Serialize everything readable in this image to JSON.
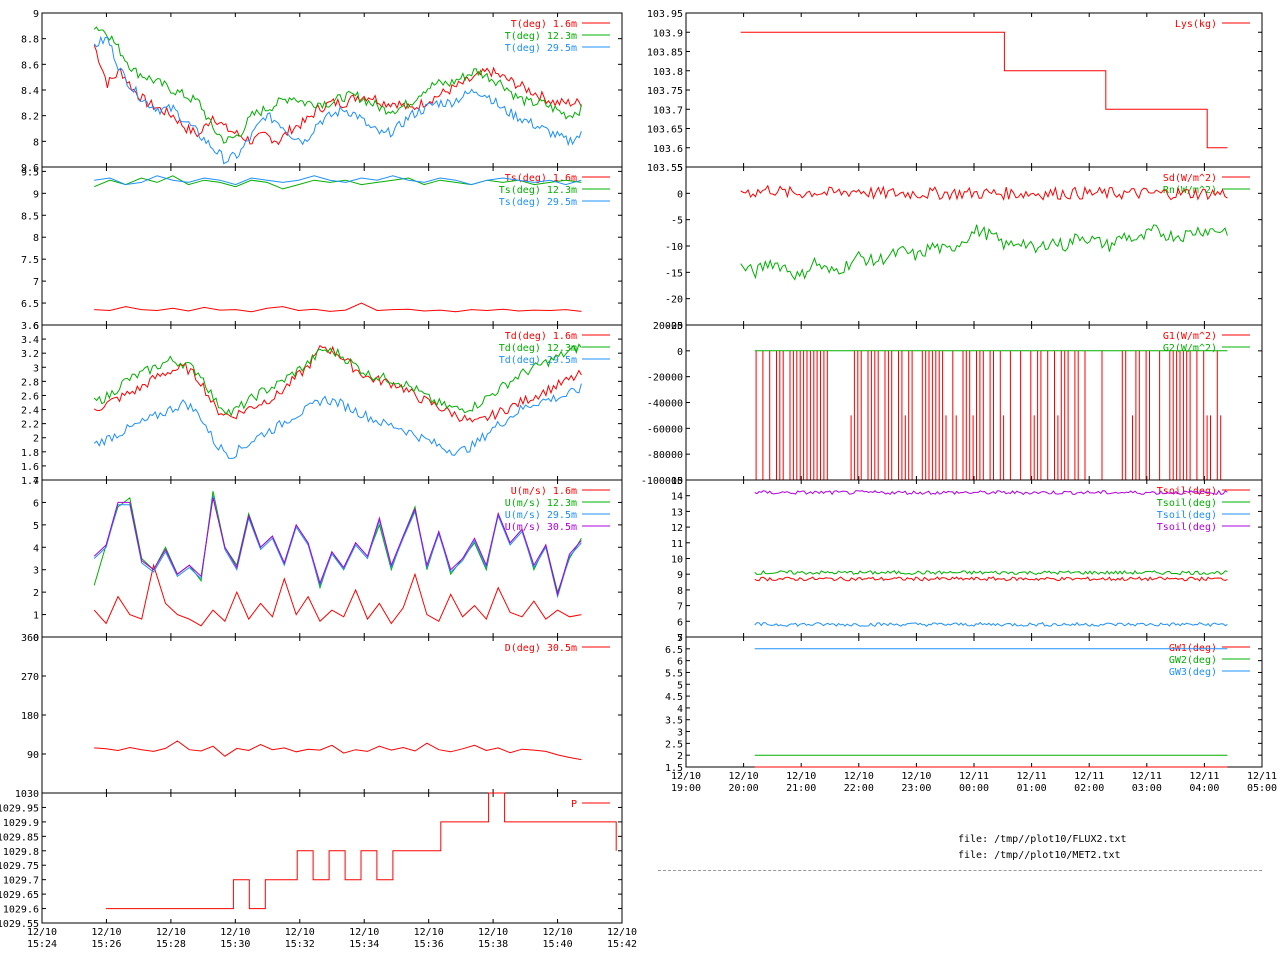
{
  "chart_data": [
    {
      "id": "met_t",
      "type": "line",
      "ylim": [
        7.8,
        9.0
      ],
      "yticks": [
        "9",
        "8.8",
        "8.6",
        "8.4",
        "8.2",
        "8"
      ],
      "series": [
        {
          "name": "T(deg)  1.6m",
          "color": "#ff0000",
          "values": [
            8.75,
            8.45,
            8.55,
            8.4,
            8.3,
            8.25,
            8.2,
            8.1,
            8.05,
            8.2,
            8.1,
            8.05,
            8.0,
            8.05,
            8.0,
            8.1,
            8.15,
            8.25,
            8.3,
            8.3,
            8.35,
            8.35,
            8.3,
            8.3,
            8.25,
            8.3,
            8.35,
            8.4,
            8.45,
            8.5,
            8.55,
            8.5,
            8.45,
            8.4,
            8.35,
            8.3,
            8.3,
            8.3
          ]
        },
        {
          "name": "T(deg) 12.3m",
          "color": "#00b000",
          "values": [
            8.9,
            8.85,
            8.7,
            8.55,
            8.5,
            8.45,
            8.4,
            8.35,
            8.3,
            8.1,
            8.0,
            8.05,
            8.2,
            8.25,
            8.3,
            8.35,
            8.3,
            8.3,
            8.3,
            8.35,
            8.35,
            8.3,
            8.25,
            8.25,
            8.3,
            8.4,
            8.45,
            8.45,
            8.5,
            8.55,
            8.5,
            8.45,
            8.35,
            8.3,
            8.3,
            8.25,
            8.2,
            8.25
          ]
        },
        {
          "name": "T(deg) 29.5m",
          "color": "#1e90ff",
          "values": [
            8.75,
            8.8,
            8.55,
            8.4,
            8.3,
            8.25,
            8.25,
            8.15,
            8.05,
            7.95,
            7.85,
            7.9,
            8.05,
            8.2,
            8.15,
            8.05,
            8.0,
            8.15,
            8.2,
            8.25,
            8.2,
            8.1,
            8.05,
            8.1,
            8.2,
            8.25,
            8.3,
            8.3,
            8.35,
            8.4,
            8.35,
            8.25,
            8.2,
            8.15,
            8.1,
            8.05,
            8.0,
            8.05
          ]
        }
      ]
    },
    {
      "id": "met_ts",
      "type": "line",
      "ylim": [
        6.0,
        9.6
      ],
      "yticks": [
        "9.6",
        "9.5",
        "9",
        "8.5",
        "8",
        "7.5",
        "7",
        "6.5",
        "6"
      ],
      "series": [
        {
          "name": "Ts(deg)  1.6m",
          "color": "#ff0000",
          "values": [
            6.35,
            6.33,
            6.42,
            6.35,
            6.33,
            6.38,
            6.32,
            6.4,
            6.34,
            6.35,
            6.3,
            6.38,
            6.42,
            6.33,
            6.36,
            6.31,
            6.34,
            6.5,
            6.33,
            6.35,
            6.36,
            6.32,
            6.34,
            6.3,
            6.35,
            6.33,
            6.36,
            6.32,
            6.34,
            6.33,
            6.35,
            6.31
          ]
        },
        {
          "name": "Ts(deg) 12.3m",
          "color": "#00b000",
          "values": [
            9.15,
            9.3,
            9.2,
            9.35,
            9.25,
            9.4,
            9.2,
            9.3,
            9.25,
            9.15,
            9.3,
            9.25,
            9.1,
            9.2,
            9.3,
            9.25,
            9.3,
            9.2,
            9.25,
            9.3,
            9.35,
            9.2,
            9.3,
            9.25,
            9.2,
            9.3,
            9.25,
            9.3,
            9.2,
            9.25,
            9.3,
            9.25
          ]
        },
        {
          "name": "Ts(deg) 29.5m",
          "color": "#1e90ff",
          "values": [
            9.3,
            9.35,
            9.2,
            9.25,
            9.4,
            9.3,
            9.25,
            9.35,
            9.3,
            9.2,
            9.35,
            9.3,
            9.25,
            9.3,
            9.4,
            9.3,
            9.25,
            9.35,
            9.3,
            9.4,
            9.3,
            9.25,
            9.35,
            9.3,
            9.2,
            9.3,
            9.35,
            9.3,
            9.25,
            9.3,
            9.2,
            9.3
          ]
        }
      ]
    },
    {
      "id": "met_td",
      "type": "line",
      "ylim": [
        1.4,
        3.6
      ],
      "yticks": [
        "3.6",
        "3.4",
        "3.2",
        "3",
        "2.8",
        "2.6",
        "2.4",
        "2.2",
        "2",
        "1.8",
        "1.6",
        "1.4"
      ],
      "series": [
        {
          "name": "Td(deg)  1.6m",
          "color": "#ff0000",
          "values": [
            2.4,
            2.5,
            2.6,
            2.7,
            2.85,
            2.95,
            3.0,
            2.8,
            2.4,
            2.3,
            2.4,
            2.5,
            2.6,
            2.8,
            3.0,
            3.3,
            3.2,
            3.0,
            2.85,
            2.8,
            2.75,
            2.6,
            2.5,
            2.4,
            2.3,
            2.2,
            2.3,
            2.4,
            2.5,
            2.6,
            2.7,
            2.8,
            2.9
          ]
        },
        {
          "name": "Td(deg) 12.3m",
          "color": "#00b000",
          "values": [
            2.5,
            2.6,
            2.8,
            2.9,
            3.0,
            3.1,
            3.05,
            2.9,
            2.5,
            2.35,
            2.5,
            2.65,
            2.75,
            2.9,
            3.05,
            3.25,
            3.2,
            3.05,
            2.9,
            2.85,
            2.8,
            2.7,
            2.55,
            2.45,
            2.4,
            2.45,
            2.6,
            2.75,
            2.9,
            3.0,
            3.1,
            3.2,
            3.3
          ]
        },
        {
          "name": "Td(deg) 29.5m",
          "color": "#1e90ff",
          "values": [
            1.9,
            2.0,
            2.1,
            2.2,
            2.3,
            2.4,
            2.5,
            2.3,
            1.9,
            1.75,
            1.9,
            2.05,
            2.15,
            2.3,
            2.4,
            2.55,
            2.5,
            2.4,
            2.3,
            2.2,
            2.15,
            2.05,
            1.95,
            1.85,
            1.8,
            1.9,
            2.1,
            2.25,
            2.4,
            2.5,
            2.55,
            2.6,
            2.7
          ]
        }
      ]
    },
    {
      "id": "met_u",
      "type": "line",
      "ylim": [
        0,
        7
      ],
      "yticks": [
        "7",
        "6",
        "5",
        "4",
        "3",
        "2",
        "1",
        "0"
      ],
      "series": [
        {
          "name": "U(m/s)  1.6m",
          "color": "#ff0000",
          "values": [
            1.2,
            0.6,
            1.8,
            1.0,
            0.8,
            3.2,
            1.5,
            1.0,
            0.8,
            0.5,
            1.2,
            0.7,
            2.0,
            0.8,
            1.5,
            0.9,
            2.6,
            1.0,
            1.8,
            0.7,
            1.2,
            0.9,
            2.1,
            0.8,
            1.5,
            0.6,
            1.3,
            2.8,
            1.0,
            0.7,
            1.9,
            0.9,
            1.4,
            0.8,
            2.2,
            1.1,
            0.9,
            1.6,
            0.8,
            1.2,
            0.9,
            1.0
          ]
        },
        {
          "name": "U(m/s) 12.3m",
          "color": "#00b000",
          "values": [
            2.3,
            4.1,
            5.8,
            6.2,
            3.5,
            3.0,
            4.0,
            2.8,
            3.2,
            2.5,
            6.5,
            4.0,
            3.2,
            5.5,
            4.0,
            4.5,
            3.3,
            5.0,
            4.2,
            2.2,
            3.8,
            3.0,
            4.2,
            3.6,
            5.0,
            3.0,
            4.5,
            5.8,
            3.0,
            4.7,
            2.8,
            3.5,
            4.2,
            3.0,
            5.5,
            4.2,
            4.8,
            3.0,
            4.1,
            2.0,
            3.5,
            4.4
          ]
        },
        {
          "name": "U(m/s) 29.5m",
          "color": "#1e90ff",
          "values": [
            3.5,
            4.0,
            5.9,
            5.9,
            3.3,
            2.9,
            3.8,
            2.7,
            3.1,
            2.6,
            6.3,
            3.9,
            3.0,
            5.3,
            3.9,
            4.4,
            3.2,
            4.9,
            4.1,
            2.3,
            3.7,
            3.0,
            4.1,
            3.5,
            5.2,
            3.1,
            4.4,
            5.6,
            3.1,
            4.6,
            2.9,
            3.4,
            4.3,
            3.1,
            5.4,
            4.1,
            4.7,
            3.1,
            4.0,
            1.8,
            3.6,
            4.2
          ]
        },
        {
          "name": "U(m/s) 30.5m",
          "color": "#b000e0",
          "values": [
            3.6,
            4.1,
            6.0,
            6.0,
            3.4,
            3.0,
            3.9,
            2.8,
            3.2,
            2.7,
            6.2,
            4.0,
            3.1,
            5.4,
            4.0,
            4.5,
            3.3,
            5.0,
            4.2,
            2.4,
            3.8,
            3.1,
            4.2,
            3.6,
            5.3,
            3.2,
            4.5,
            5.7,
            3.2,
            4.7,
            3.0,
            3.5,
            4.4,
            3.2,
            5.5,
            4.2,
            4.8,
            3.2,
            4.1,
            1.9,
            3.7,
            4.3
          ]
        }
      ]
    },
    {
      "id": "met_d",
      "type": "line",
      "ylim": [
        0,
        360
      ],
      "yticks": [
        "360",
        "270",
        "180",
        "90"
      ],
      "series": [
        {
          "name": "D(deg)  30.5m",
          "color": "#ff0000",
          "values": [
            104,
            102,
            98,
            105,
            100,
            96,
            103,
            120,
            100,
            97,
            108,
            85,
            103,
            98,
            112,
            100,
            104,
            95,
            101,
            99,
            110,
            92,
            100,
            96,
            108,
            99,
            105,
            97,
            115,
            100,
            95,
            102,
            110,
            98,
            104,
            93,
            101,
            99,
            96,
            88,
            82,
            77
          ]
        }
      ]
    },
    {
      "id": "met_p",
      "type": "line",
      "ylim": [
        1029.55,
        1030.0
      ],
      "yticks": [
        "1030",
        "1029.95",
        "1029.9",
        "1029.85",
        "1029.8",
        "1029.75",
        "1029.7",
        "1029.65",
        "1029.6",
        "1029.55"
      ],
      "xlabels": [
        "12/10\n15:24",
        "12/10\n15:26",
        "12/10\n15:28",
        "12/10\n15:30",
        "12/10\n15:32",
        "12/10\n15:34",
        "12/10\n15:36",
        "12/10\n15:38",
        "12/10\n15:40",
        "12/10\n15:42"
      ],
      "series": [
        {
          "name": "P",
          "color": "#ff0000",
          "values": [
            1029.6,
            1029.6,
            1029.6,
            1029.6,
            1029.6,
            1029.6,
            1029.6,
            1029.6,
            1029.7,
            1029.6,
            1029.7,
            1029.7,
            1029.8,
            1029.7,
            1029.8,
            1029.7,
            1029.8,
            1029.7,
            1029.8,
            1029.8,
            1029.8,
            1029.9,
            1029.9,
            1029.9,
            1030.0,
            1029.9,
            1029.9,
            1029.9,
            1029.9,
            1029.9,
            1029.9,
            1029.9,
            1029.8
          ]
        }
      ]
    },
    {
      "id": "flux_lys",
      "type": "line",
      "ylim": [
        103.55,
        103.95
      ],
      "yticks": [
        "103.95",
        "103.9",
        "103.85",
        "103.8",
        "103.75",
        "103.7",
        "103.65",
        "103.6",
        "103.55"
      ],
      "series": [
        {
          "name": "Lys(kg)",
          "color": "#ff0000",
          "values": [
            103.9,
            103.9,
            103.9,
            103.9,
            103.9,
            103.9,
            103.9,
            103.9,
            103.9,
            103.9,
            103.9,
            103.9,
            103.9,
            103.8,
            103.8,
            103.8,
            103.8,
            103.8,
            103.7,
            103.7,
            103.7,
            103.7,
            103.7,
            103.6,
            103.6
          ]
        }
      ]
    },
    {
      "id": "flux_sd",
      "type": "line",
      "ylim": [
        -25,
        5
      ],
      "yticks": [
        "5",
        "0",
        "-5",
        "-10",
        "-15",
        "-20",
        "-25"
      ],
      "series": [
        {
          "name": "Sd(W/m^2)",
          "color": "#ff0000",
          "values": [
            0.5,
            0.2,
            0.8,
            0.1,
            0,
            0.3,
            0,
            0.2,
            0.6,
            0,
            0,
            0,
            0,
            0,
            0,
            0,
            0,
            0,
            0,
            0,
            0,
            0,
            0,
            0,
            0,
            0,
            0,
            0,
            0,
            0,
            0,
            0,
            0,
            0
          ]
        },
        {
          "name": "Rn(W/m^2)",
          "color": "#00b000",
          "values": [
            -14,
            -15,
            -13,
            -14,
            -16,
            -13,
            -15,
            -14,
            -12,
            -13,
            -12,
            -11,
            -12,
            -10,
            -11,
            -9,
            -7,
            -8,
            -10,
            -9,
            -11,
            -9,
            -10,
            -8,
            -9,
            -10,
            -8,
            -9,
            -7,
            -8,
            -8,
            -7,
            -7,
            -7
          ]
        }
      ]
    },
    {
      "id": "flux_g",
      "type": "line",
      "ylim": [
        -100000,
        20000
      ],
      "yticks": [
        "20000",
        "0",
        "-20000",
        "-40000",
        "-60000",
        "-80000",
        "-100000"
      ],
      "series": [
        {
          "name": "G1(W/m^2)",
          "color": "#ff0000",
          "values": []
        },
        {
          "name": "G2(W/m^2)",
          "color": "#00b000",
          "values": [
            0,
            0
          ]
        }
      ]
    },
    {
      "id": "flux_tsoil",
      "type": "line",
      "ylim": [
        5,
        15
      ],
      "yticks": [
        "15",
        "14",
        "13",
        "12",
        "11",
        "10",
        "9",
        "8",
        "7",
        "6",
        "5"
      ],
      "series": [
        {
          "name": "Tsoil(deg)",
          "color": "#ff0000",
          "values": [
            8.7,
            8.7
          ]
        },
        {
          "name": "Tsoil(deg)",
          "color": "#00b000",
          "values": [
            9.1,
            9.1
          ]
        },
        {
          "name": "Tsoil(deg)",
          "color": "#1e90ff",
          "values": [
            5.8,
            5.8
          ]
        },
        {
          "name": "Tsoil(deg)",
          "color": "#b000e0",
          "values": [
            14.2,
            14.2
          ]
        }
      ]
    },
    {
      "id": "flux_gw",
      "type": "line",
      "ylim": [
        1.5,
        7.0
      ],
      "yticks": [
        "7",
        "6.5",
        "6",
        "5.5",
        "5",
        "4.5",
        "4",
        "3.5",
        "3",
        "2.5",
        "2",
        "1.5"
      ],
      "xlabels": [
        "12/10\n19:00",
        "12/10\n20:00",
        "12/10\n21:00",
        "12/10\n22:00",
        "12/10\n23:00",
        "12/11\n00:00",
        "12/11\n01:00",
        "12/11\n02:00",
        "12/11\n03:00",
        "12/11\n04:00",
        "12/11\n05:00"
      ],
      "series": [
        {
          "name": "GW1(deg)",
          "color": "#ff0000",
          "values": [
            1.5,
            1.5
          ]
        },
        {
          "name": "GW2(deg)",
          "color": "#00b000",
          "values": [
            2.0,
            2.0
          ]
        },
        {
          "name": "GW3(deg)",
          "color": "#1e90ff",
          "values": [
            6.5,
            6.5
          ]
        }
      ]
    }
  ],
  "files": [
    "file: /tmp//plot10/FLUX2.txt",
    "file: /tmp//plot10/MET2.txt"
  ]
}
